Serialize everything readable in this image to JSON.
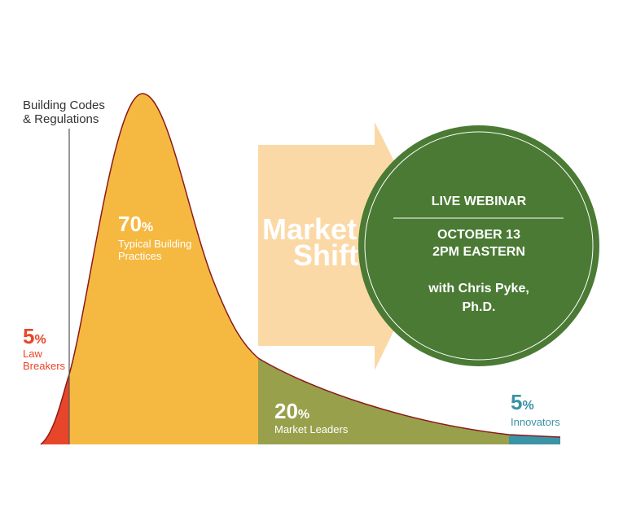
{
  "codes_label": [
    "Building Codes",
    "& Regulations"
  ],
  "segments": [
    {
      "percent": "5",
      "unit": "%",
      "label": [
        "Law",
        "Breakers"
      ]
    },
    {
      "percent": "70",
      "unit": "%",
      "label": [
        "Typical Building",
        "Practices"
      ]
    },
    {
      "percent": "20",
      "unit": "%",
      "label": [
        "Market Leaders"
      ]
    },
    {
      "percent": "5",
      "unit": "%",
      "label": [
        "Innovators"
      ]
    }
  ],
  "arrow_text": [
    "Market",
    "Shift"
  ],
  "webinar": {
    "title": "LIVE WEBINAR",
    "date": "OCTOBER 13",
    "time": "2PM EASTERN",
    "presenter": [
      "with Chris Pyke,",
      "Ph.D."
    ]
  }
}
